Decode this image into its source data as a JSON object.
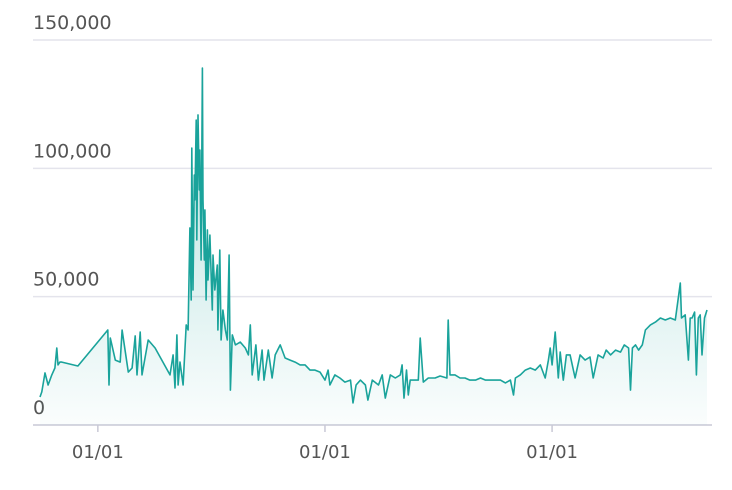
{
  "chart_data": {
    "type": "line",
    "area": true,
    "color": "#1aa39b",
    "grid": true,
    "xlim": [
      0,
      1088
    ],
    "xticks": [
      {
        "value": 101,
        "label": "01/01"
      },
      {
        "value": 466,
        "label": "01/01"
      },
      {
        "value": 831,
        "label": "01/01"
      }
    ],
    "ylim": [
      0,
      150000
    ],
    "yticks": [
      0,
      {
        "value": 50000,
        "label": "50,000"
      },
      {
        "value": 100000,
        "label": "100,000"
      },
      {
        "value": 150000,
        "label": "150,000"
      }
    ],
    "x": [
      8,
      11,
      16,
      21,
      27,
      32,
      35,
      37,
      40,
      43,
      69,
      117,
      119,
      121,
      129,
      137,
      140,
      150,
      156,
      161,
      164,
      169,
      172,
      182,
      193,
      217,
      222,
      225,
      228,
      230,
      233,
      238,
      243,
      246,
      249,
      251,
      252,
      254,
      256,
      257,
      259,
      260,
      262,
      264,
      265,
      267,
      269,
      270,
      272,
      273,
      275,
      277,
      278,
      281,
      285,
      286,
      289,
      293,
      294,
      297,
      299,
      302,
      306,
      309,
      312,
      314,
      317,
      322,
      330,
      338,
      343,
      346,
      349,
      355,
      359,
      365,
      368,
      375,
      381,
      386,
      394,
      402,
      410,
      418,
      426,
      434,
      442,
      450,
      458,
      466,
      471,
      474,
      482,
      490,
      498,
      507,
      511,
      516,
      523,
      531,
      535,
      542,
      552,
      558,
      563,
      571,
      579,
      587,
      590,
      593,
      597,
      600,
      603,
      611,
      616,
      619,
      624,
      632,
      643,
      651,
      662,
      664,
      667,
      675,
      683,
      691,
      699,
      708,
      716,
      724,
      732,
      740,
      748,
      756,
      764,
      769,
      772,
      780,
      788,
      796,
      804,
      812,
      820,
      825,
      828,
      831,
      836,
      841,
      844,
      849,
      854,
      860,
      868,
      876,
      884,
      892,
      897,
      905,
      913,
      918,
      925,
      933,
      941,
      947,
      954,
      957,
      960,
      965,
      970,
      976,
      981,
      989,
      997,
      1005,
      1013,
      1021,
      1029,
      1037,
      1039,
      1045,
      1050,
      1053,
      1056,
      1060,
      1063,
      1066,
      1069,
      1072,
      1076,
      1080
    ],
    "values": [
      10900,
      12900,
      20300,
      15600,
      19500,
      22200,
      30000,
      23400,
      24500,
      24500,
      23000,
      37000,
      15600,
      33900,
      25300,
      24500,
      37000,
      20600,
      22200,
      34700,
      19500,
      36200,
      19500,
      33100,
      30000,
      19500,
      27300,
      14400,
      35100,
      15600,
      24500,
      15600,
      39000,
      37000,
      76800,
      48700,
      107900,
      52600,
      97400,
      87700,
      118800,
      72100,
      120800,
      91600,
      107100,
      64300,
      139100,
      87700,
      64300,
      83800,
      48700,
      76000,
      56500,
      74000,
      44800,
      66200,
      52600,
      62300,
      37000,
      68200,
      33100,
      44800,
      37000,
      33100,
      66200,
      13600,
      35100,
      31200,
      32300,
      30000,
      27300,
      39000,
      19500,
      31200,
      17500,
      29200,
      17500,
      29200,
      18300,
      27300,
      31200,
      26100,
      25300,
      24500,
      23400,
      23400,
      21400,
      21400,
      20600,
      17500,
      21400,
      15600,
      19500,
      18300,
      16700,
      17500,
      8600,
      15600,
      17500,
      15600,
      9700,
      17500,
      15600,
      19500,
      10500,
      19500,
      18300,
      19500,
      23400,
      10500,
      21400,
      11700,
      17500,
      17500,
      17500,
      33900,
      16700,
      18300,
      18300,
      19100,
      18300,
      40900,
      19500,
      19500,
      18300,
      18300,
      17500,
      17500,
      18300,
      17500,
      17500,
      17500,
      17500,
      16400,
      17500,
      11700,
      18300,
      19500,
      21400,
      22200,
      21400,
      23400,
      18300,
      25300,
      30000,
      23400,
      36200,
      18300,
      28400,
      17500,
      27300,
      27300,
      18300,
      27300,
      25300,
      26500,
      18300,
      27300,
      26100,
      29200,
      27300,
      29200,
      28400,
      31200,
      30000,
      13600,
      30000,
      31200,
      29200,
      31200,
      37000,
      39000,
      40100,
      41700,
      40900,
      41700,
      40900,
      55300,
      41700,
      42900,
      25300,
      41700,
      41700,
      44000,
      19500,
      41700,
      42900,
      27300,
      41700,
      44800
    ]
  }
}
